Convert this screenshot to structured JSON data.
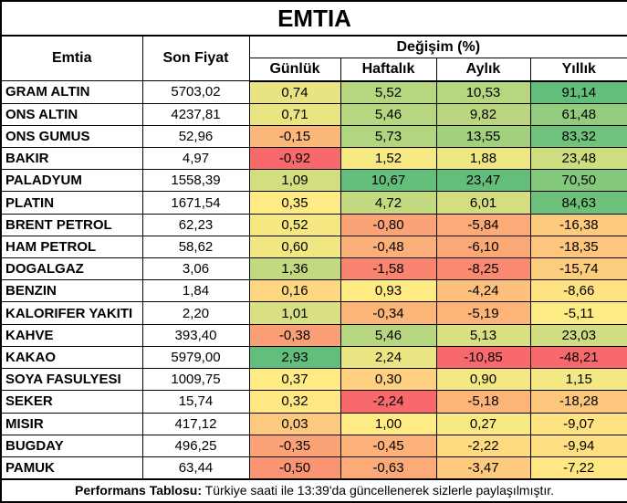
{
  "chart_data": {
    "type": "table",
    "title": "EMTIA",
    "header": {
      "emtia": "Emtia",
      "son_fiyat": "Son Fiyat",
      "degisim": "Değişim (%)",
      "sub": [
        "Günlük",
        "Haftalık",
        "Aylık",
        "Yıllık"
      ]
    },
    "rows": [
      {
        "name": "GRAM ALTIN",
        "price": "5703,02",
        "changes": [
          "0,74",
          "5,52",
          "10,53",
          "91,14"
        ]
      },
      {
        "name": "ONS ALTIN",
        "price": "4237,81",
        "changes": [
          "0,71",
          "5,46",
          "9,82",
          "61,48"
        ]
      },
      {
        "name": "ONS GUMUS",
        "price": "52,96",
        "changes": [
          "-0,15",
          "5,73",
          "13,55",
          "83,32"
        ]
      },
      {
        "name": "BAKIR",
        "price": "4,97",
        "changes": [
          "-0,92",
          "1,52",
          "1,88",
          "23,48"
        ]
      },
      {
        "name": "PALADYUM",
        "price": "1558,39",
        "changes": [
          "1,09",
          "10,67",
          "23,47",
          "70,50"
        ]
      },
      {
        "name": "PLATIN",
        "price": "1671,54",
        "changes": [
          "0,35",
          "4,72",
          "6,01",
          "84,63"
        ]
      },
      {
        "name": "BRENT PETROL",
        "price": "62,23",
        "changes": [
          "0,52",
          "-0,80",
          "-5,84",
          "-16,38"
        ]
      },
      {
        "name": "HAM PETROL",
        "price": "58,62",
        "changes": [
          "0,60",
          "-0,48",
          "-6,10",
          "-18,35"
        ]
      },
      {
        "name": "DOGALGAZ",
        "price": "3,06",
        "changes": [
          "1,36",
          "-1,58",
          "-8,25",
          "-15,74"
        ]
      },
      {
        "name": "BENZIN",
        "price": "1,84",
        "changes": [
          "0,16",
          "0,93",
          "-4,24",
          "-8,66"
        ]
      },
      {
        "name": "KALORIFER YAKITI",
        "price": "2,20",
        "changes": [
          "1,01",
          "-0,34",
          "-5,19",
          "-5,11"
        ]
      },
      {
        "name": "KAHVE",
        "price": "393,40",
        "changes": [
          "-0,38",
          "5,46",
          "5,13",
          "23,03"
        ]
      },
      {
        "name": "KAKAO",
        "price": "5979,00",
        "changes": [
          "2,93",
          "2,24",
          "-10,85",
          "-48,21"
        ]
      },
      {
        "name": "SOYA FASULYESI",
        "price": "1009,75",
        "changes": [
          "0,37",
          "0,30",
          "0,90",
          "1,15"
        ]
      },
      {
        "name": "SEKER",
        "price": "15,74",
        "changes": [
          "0,32",
          "-2,24",
          "-5,18",
          "-18,28"
        ]
      },
      {
        "name": "MISIR",
        "price": "417,12",
        "changes": [
          "0,03",
          "1,00",
          "0,27",
          "-9,07"
        ]
      },
      {
        "name": "BUGDAY",
        "price": "496,25",
        "changes": [
          "-0,35",
          "-0,45",
          "-2,22",
          "-9,94"
        ]
      },
      {
        "name": "PAMUK",
        "price": "63,44",
        "changes": [
          "-0,50",
          "-0,63",
          "-3,47",
          "-7,22"
        ]
      }
    ],
    "color_scale": {
      "min_color": "#F8696B",
      "mid_color": "#FFEB84",
      "max_color": "#63BE7B",
      "midpoint": "50th-percentile-per-column"
    },
    "footer": {
      "bold": "Performans Tablosu:",
      "text": " Türkiye saati ile 13:39'da güncellenerek sizlerle paylaşılmıştır."
    },
    "layout": {
      "border_color": "#000000",
      "background_color": "#FFFFFF"
    }
  }
}
